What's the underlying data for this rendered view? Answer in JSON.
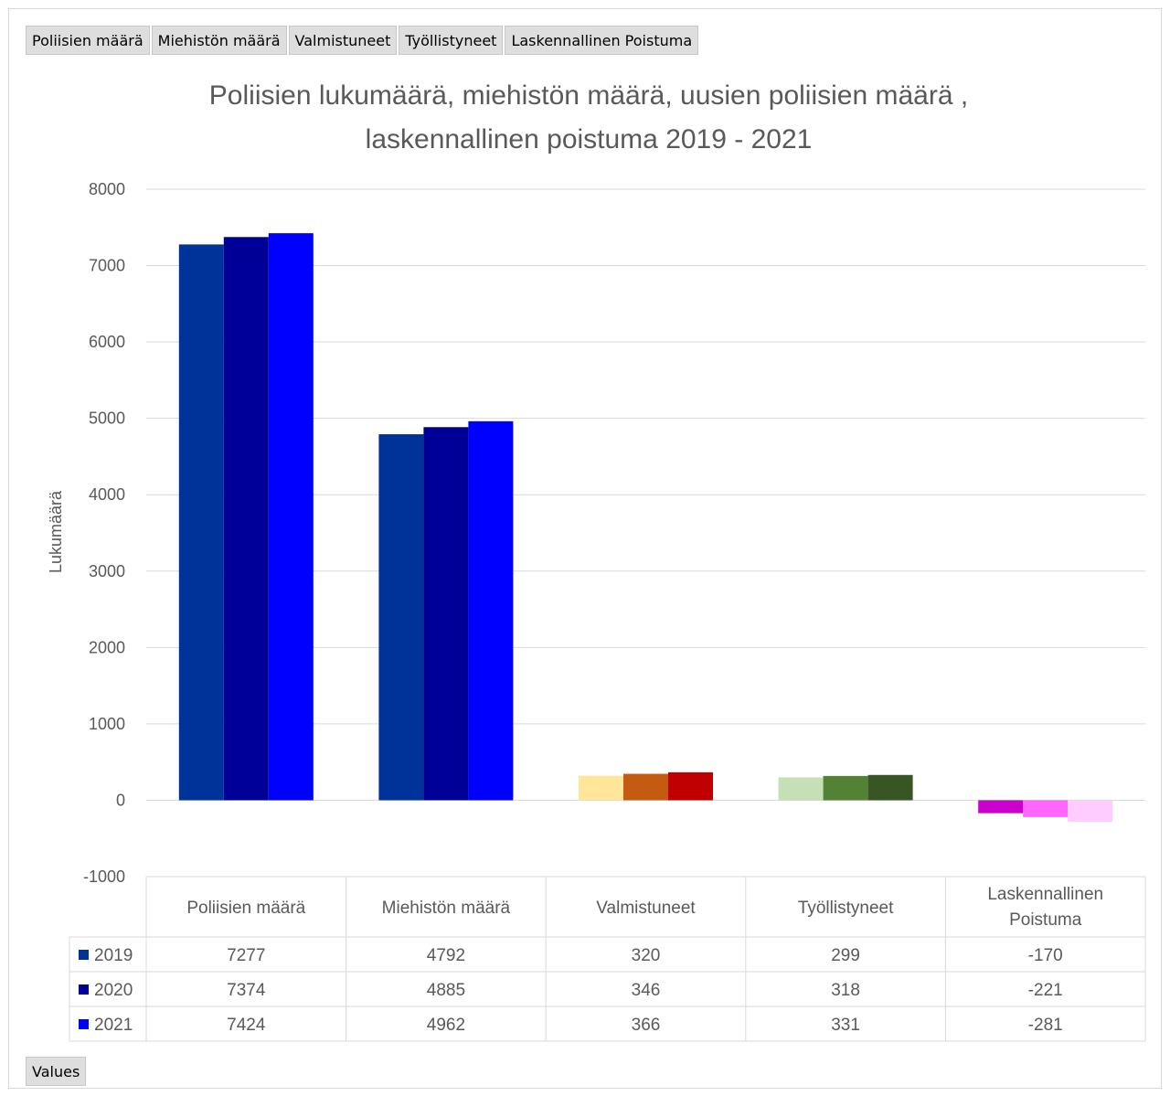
{
  "field_buttons": [
    "Poliisien määrä",
    "Miehistön määrä",
    "Valmistuneet",
    "Työllistyneet",
    "Laskennallinen Poistuma"
  ],
  "values_button": "Values",
  "chart_data": {
    "type": "bar",
    "title_line1": "Poliisien lukumäärä, miehistön määrä, uusien poliisien määrä ,",
    "title_line2": "laskennallinen poistuma 2019 - 2021",
    "ylabel": "Lukumäärä",
    "xlabel": "",
    "ylim": [
      -1000,
      8000
    ],
    "yticks": [
      -1000,
      0,
      1000,
      2000,
      3000,
      4000,
      5000,
      6000,
      7000,
      8000
    ],
    "grid": true,
    "categories": [
      "Poliisien määrä",
      "Miehistön määrä",
      "Valmistuneet",
      "Työllistyneet",
      "Laskennallinen Poistuma"
    ],
    "series": [
      {
        "name": "2019",
        "values": [
          7277,
          4792,
          320,
          299,
          -170
        ],
        "legend_color": "#003399"
      },
      {
        "name": "2020",
        "values": [
          7374,
          4885,
          346,
          318,
          -221
        ],
        "legend_color": "#000099"
      },
      {
        "name": "2021",
        "values": [
          7424,
          4962,
          366,
          331,
          -281
        ],
        "legend_color": "#0000ff"
      }
    ],
    "bar_colors": [
      [
        "#003399",
        "#000099",
        "#0000ff"
      ],
      [
        "#003399",
        "#000099",
        "#0000ff"
      ],
      [
        "#ffe699",
        "#c55a11",
        "#c00000"
      ],
      [
        "#c5e0b4",
        "#548235",
        "#375623"
      ],
      [
        "#cc00cc",
        "#ff66ff",
        "#ffccff"
      ]
    ],
    "data_table": true
  }
}
